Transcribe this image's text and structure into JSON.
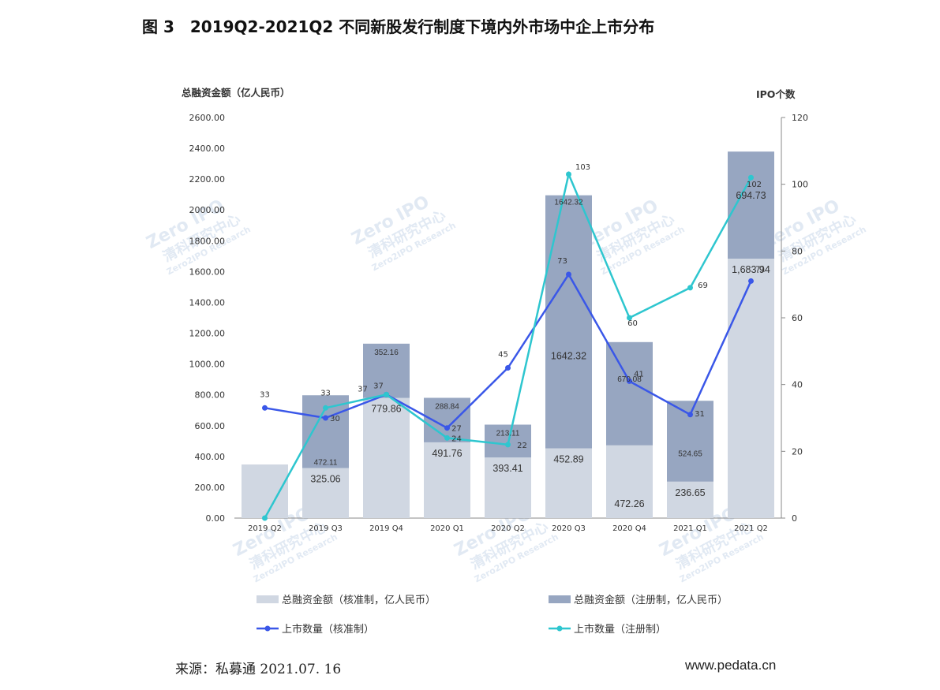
{
  "title": "图 3　2019Q2-2021Q2 不同新股发行制度下境内外市场中企上市分布",
  "footer": {
    "source": "来源：私募通  2021.07. 16",
    "url": "www.pedata.cn"
  },
  "watermark": {
    "brand": "Zero IPO",
    "cn": "清科研究中心",
    "en": "Zero2IPO Research"
  },
  "colors": {
    "bar_core": "#d0d7e2",
    "bar_reg": "#97a6c1",
    "line_core": "#3a57e8",
    "line_reg": "#2ec6cf",
    "axis": "#888888"
  },
  "chart_data": {
    "type": "bar",
    "categories": [
      "2019 Q2",
      "2019 Q3",
      "2019 Q4",
      "2020 Q1",
      "2020 Q2",
      "2020 Q3",
      "2020 Q4",
      "2021 Q1",
      "2021 Q2"
    ],
    "ylabel_left": "总融资金额（亿人民币）",
    "ylabel_right": "IPO个数",
    "ylim_left": [
      0,
      2600
    ],
    "ylim_right": [
      0,
      120
    ],
    "yticks_left": [
      "0.00",
      "200.00",
      "400.00",
      "600.00",
      "800.00",
      "1000.00",
      "1200.00",
      "1400.00",
      "1600.00",
      "1800.00",
      "2000.00",
      "2200.00",
      "2400.00",
      "2600.00"
    ],
    "yticks_right": [
      "0",
      "20",
      "40",
      "60",
      "80",
      "100",
      "120"
    ],
    "legend_position": "bottom",
    "bar_series": [
      {
        "name": "总融资金额（核准制，亿人民币）",
        "values": [
          348,
          325.06,
          779.86,
          491.76,
          393.41,
          452.89,
          472.26,
          236.65,
          1683.94
        ],
        "labels": [
          "",
          "325.06",
          "779.86",
          "491.76",
          "393.41",
          "452.89",
          "472.26",
          "236.65",
          "1,683.94"
        ]
      },
      {
        "name": "总融资金额（注册制，亿人民币）",
        "values": [
          0,
          472.11,
          352.16,
          288.84,
          213.11,
          1642.32,
          670.08,
          524.65,
          694.73
        ],
        "labels": [
          "",
          "472.11",
          "352.16",
          "288.84",
          "213.11",
          "1642.32",
          "670.08",
          "524.65",
          "694.73"
        ]
      }
    ],
    "line_series": [
      {
        "name": "上市数量（核准制）",
        "values": [
          33,
          30,
          37,
          27,
          45,
          73,
          41,
          31,
          71
        ],
        "labels": [
          "33",
          "30",
          "37",
          "27",
          "45",
          "73",
          "41",
          "31",
          "71"
        ]
      },
      {
        "name": "上市数量（注册制）",
        "values": [
          0,
          33,
          37,
          24,
          22,
          103,
          60,
          69,
          102
        ],
        "labels": [
          "",
          "33",
          "37",
          "24",
          "22",
          "103",
          "60",
          "69",
          "102"
        ]
      }
    ]
  }
}
